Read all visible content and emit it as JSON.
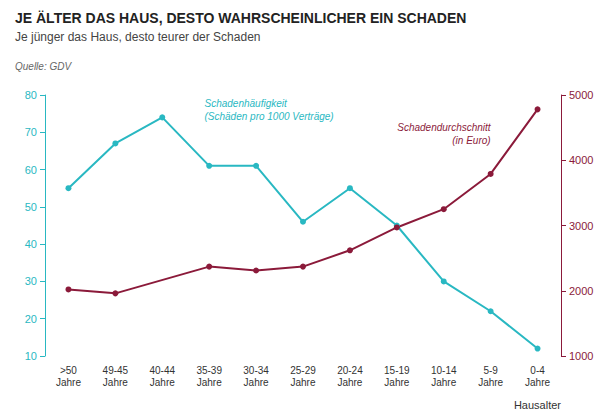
{
  "chart_data": {
    "type": "line",
    "title": "JE ÄLTER DAS HAUS, DESTO WAHRSCHEINLICHER EIN SCHADEN",
    "subtitle": "Je jünger das Haus, desto teurer der Schaden",
    "source": "Quelle: GDV",
    "x_label": "Hausalter",
    "categories": [
      ">50\nJahre",
      "49-45\nJahre",
      "40-44\nJahre",
      "35-39\nJahre",
      "30-34\nJahre",
      "25-29\nJahre",
      "20-24\nJahre",
      "15-19\nJahre",
      "10-14\nJahre",
      "5-9\nJahre",
      "0-4\nJahre"
    ],
    "series": [
      {
        "name": "Schadenhäufigkeit\n(Schäden pro 1000 Verträge)",
        "color": "#29B8C2",
        "marker": "circle",
        "values": [
          55,
          67,
          74,
          61,
          61,
          46,
          55,
          45,
          30,
          22,
          12
        ]
      },
      {
        "name": "Schadendurchschnitt\n(in Euro)",
        "color": "#8B1A3A",
        "marker": "circle",
        "axis": "y2",
        "values": [
          2020,
          1960,
          null,
          2370,
          2310,
          2370,
          2620,
          2970,
          3250,
          3790,
          4780
        ]
      }
    ],
    "ylim": [
      10,
      80
    ],
    "yticks": [
      10,
      20,
      30,
      40,
      50,
      60,
      70,
      80
    ],
    "y2lim": [
      1000,
      5000
    ],
    "y2ticks": [
      1000,
      2000,
      3000,
      4000,
      5000
    ],
    "grid": false
  }
}
